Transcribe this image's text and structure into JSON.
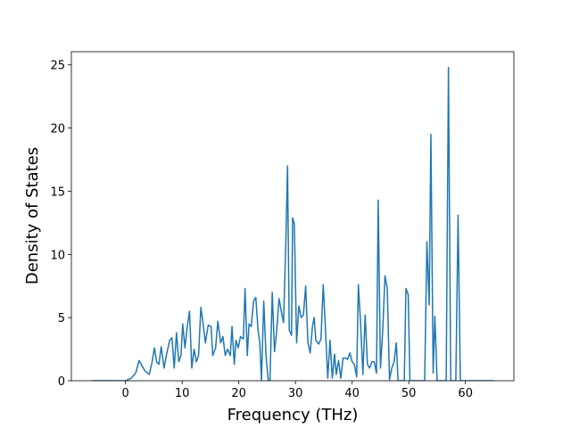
{
  "chart_data": {
    "type": "line",
    "xlabel": "Frequency (THz)",
    "ylabel": "Density of States",
    "color": "#1f77b4",
    "xlim": [
      -9.55,
      68.55
    ],
    "ylim": [
      0,
      26.04
    ],
    "xticks": [
      0,
      10,
      20,
      30,
      40,
      50,
      60
    ],
    "yticks": [
      0,
      5,
      10,
      15,
      20,
      25
    ],
    "x": [
      -6,
      0,
      1,
      1.8,
      2.4,
      2.9,
      3.4,
      4.2,
      4.7,
      5.1,
      5.5,
      5.9,
      6.3,
      6.8,
      7.3,
      7.8,
      8.2,
      8.6,
      9.0,
      9.4,
      9.8,
      10.1,
      10.5,
      10.9,
      11.3,
      11.7,
      12.1,
      12.5,
      12.9,
      13.3,
      13.7,
      14.1,
      14.6,
      15.1,
      15.4,
      15.9,
      16.3,
      16.8,
      17.2,
      17.6,
      18.0,
      18.5,
      18.8,
      19.2,
      19.5,
      19.9,
      20.3,
      20.8,
      21.1,
      21.5,
      21.8,
      22.2,
      22.6,
      23.0,
      23.4,
      23.7,
      24.0,
      24.4,
      24.8,
      25.2,
      25.5,
      25.9,
      26.3,
      26.7,
      27.1,
      27.5,
      27.9,
      28.3,
      28.6,
      28.9,
      29.3,
      29.5,
      29.8,
      30.2,
      30.6,
      31.0,
      31.4,
      31.8,
      32.2,
      32.6,
      33.0,
      33.3,
      33.6,
      34.1,
      34.5,
      34.9,
      35.3,
      35.7,
      36.1,
      36.5,
      36.9,
      37.2,
      37.6,
      38.0,
      38.4,
      38.8,
      39.2,
      39.6,
      40.0,
      40.4,
      40.8,
      41.1,
      41.5,
      41.9,
      42.3,
      42.7,
      43.1,
      43.5,
      43.9,
      44.3,
      44.6,
      45.0,
      45.4,
      45.8,
      46.2,
      46.6,
      47.0,
      47.4,
      47.8,
      48.1,
      49.2,
      49.5,
      49.9,
      50.2,
      52.8,
      53.2,
      53.6,
      53.9,
      54.3,
      54.6,
      55.0,
      56.6,
      57.0,
      57.4,
      58.3,
      58.7,
      59.1,
      65
    ],
    "values": [
      0,
      0,
      0.2,
      0.6,
      1.6,
      1.2,
      0.8,
      0.5,
      1.5,
      2.6,
      1.5,
      1.3,
      2.7,
      1.0,
      2.2,
      3.2,
      3.4,
      1.0,
      3.8,
      1.5,
      2.0,
      4.5,
      2.6,
      4.3,
      5.5,
      1.0,
      2.5,
      1.5,
      2.0,
      5.8,
      4.5,
      3.0,
      4.4,
      4.3,
      2.0,
      2.6,
      4.7,
      3.0,
      3.5,
      2.0,
      2.5,
      2.0,
      4.3,
      1.3,
      3.2,
      2.6,
      3.5,
      3.3,
      7.3,
      2.0,
      4.5,
      4.3,
      6.3,
      6.6,
      4.0,
      3.0,
      0,
      6.3,
      2.0,
      0,
      0,
      7.0,
      2.3,
      4.0,
      6.5,
      5.5,
      4.6,
      11,
      17.0,
      4.0,
      3.6,
      12.9,
      12.4,
      3.0,
      5.9,
      5.0,
      5.2,
      7.5,
      3.0,
      2.2,
      4.3,
      5.0,
      3.2,
      2.9,
      3.3,
      7.6,
      4.0,
      0.2,
      3.2,
      0.2,
      2.1,
      0.5,
      1.6,
      0.2,
      1.8,
      1.8,
      1.7,
      2.2,
      1.5,
      1.3,
      0.3,
      7.6,
      4.5,
      0.5,
      5.2,
      1.3,
      1.0,
      1.5,
      1.5,
      0.6,
      14.3,
      1.0,
      4.0,
      8.3,
      7.3,
      0.1,
      1.0,
      1.5,
      3.0,
      0,
      0,
      7.3,
      6.8,
      0,
      0,
      11.0,
      6.0,
      19.5,
      0.6,
      5.1,
      0,
      0,
      24.8,
      0,
      0,
      13.1,
      0,
      0
    ]
  }
}
